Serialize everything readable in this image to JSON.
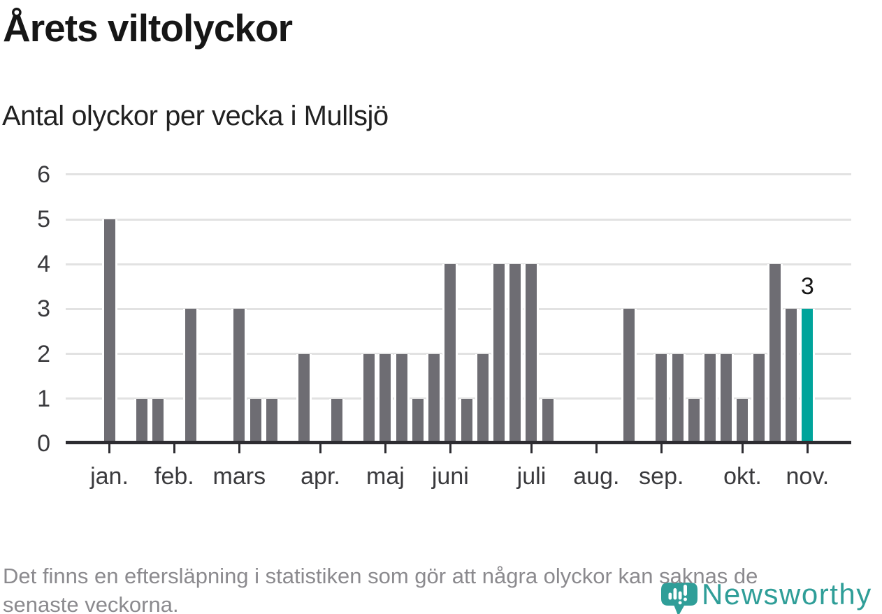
{
  "page": {
    "title": "Årets viltolyckor",
    "subtitle": "Antal olyckor per vecka i Mullsjö"
  },
  "footer": {
    "note_lines": [
      "Det finns en eftersläpning i statistiken som gör att några olyckor kan saknas de",
      "senaste veckorna."
    ],
    "brand_name": "Newsworthy",
    "brand_icon": "newsworthy-marker-icon"
  },
  "colors": {
    "bar_gray": "#6e6d73",
    "highlight_teal": "#00a49b",
    "axis": "#2d2c31",
    "gridline": "#e2e2e2",
    "axis_label": "#3a3a3d",
    "footer_text": "#8b8a8e",
    "logo_teal": "#2f9e98",
    "title_text": "#161616"
  },
  "chart_data": {
    "type": "bar",
    "title": "Årets viltolyckor",
    "subtitle": "Antal olyckor per vecka i Mullsjö",
    "x_unit": "vecka (week of year)",
    "y_unit": "antal olyckor",
    "week_numbers": [
      1,
      2,
      3,
      4,
      5,
      6,
      7,
      8,
      9,
      10,
      11,
      12,
      13,
      14,
      15,
      16,
      17,
      18,
      19,
      20,
      21,
      22,
      23,
      24,
      25,
      26,
      27,
      28,
      29,
      30,
      31,
      32,
      33,
      34,
      35,
      36,
      37,
      38,
      39,
      40,
      41,
      42,
      43,
      44
    ],
    "values": [
      5,
      0,
      1,
      1,
      0,
      3,
      0,
      0,
      3,
      1,
      1,
      0,
      2,
      0,
      1,
      0,
      2,
      2,
      2,
      1,
      2,
      4,
      1,
      2,
      4,
      4,
      4,
      1,
      0,
      0,
      0,
      0,
      3,
      0,
      2,
      2,
      1,
      2,
      2,
      1,
      2,
      4,
      3,
      3
    ],
    "ylim": [
      0,
      6
    ],
    "y_ticks": [
      0,
      1,
      2,
      3,
      4,
      5,
      6
    ],
    "grid": true,
    "month_ticks": [
      {
        "label": "jan.",
        "week": 1
      },
      {
        "label": "feb.",
        "week": 5
      },
      {
        "label": "mars",
        "week": 9
      },
      {
        "label": "apr.",
        "week": 14
      },
      {
        "label": "maj",
        "week": 18
      },
      {
        "label": "juni",
        "week": 22
      },
      {
        "label": "juli",
        "week": 27
      },
      {
        "label": "aug.",
        "week": 31
      },
      {
        "label": "sep.",
        "week": 35
      },
      {
        "label": "okt.",
        "week": 40
      },
      {
        "label": "nov.",
        "week": 44
      }
    ],
    "highlight": {
      "week": 44,
      "value": 3,
      "label": "3"
    },
    "bar_color": "#6e6d73",
    "highlight_color": "#00a49b",
    "legend": null
  }
}
